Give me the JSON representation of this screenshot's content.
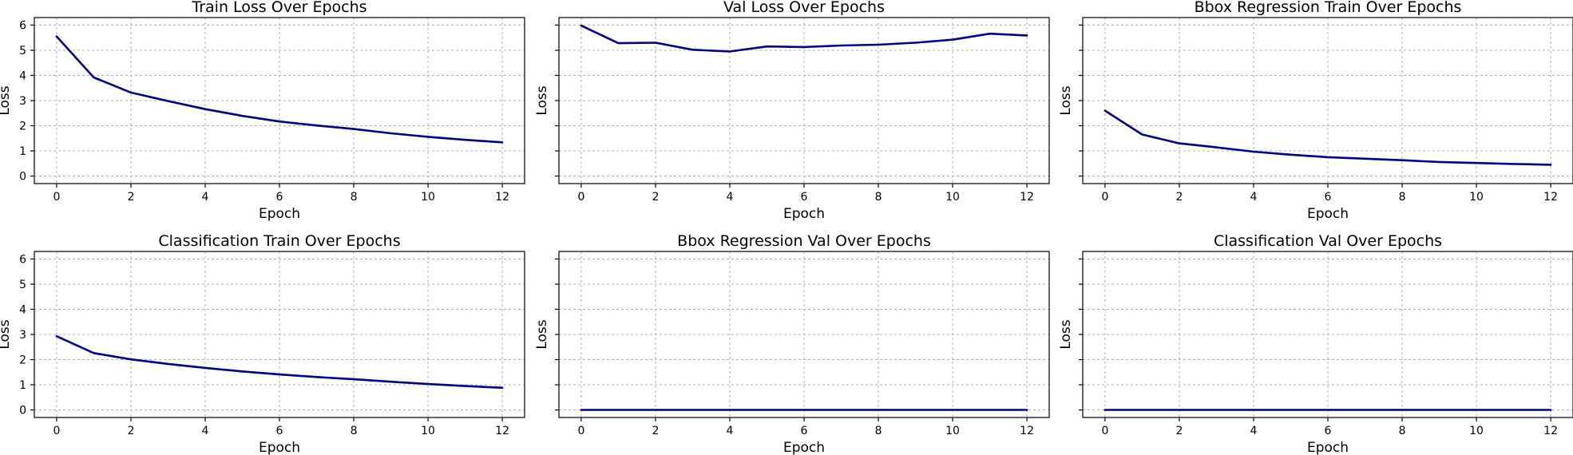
{
  "chart_data": [
    {
      "type": "line",
      "title": "Train Loss Over Epochs",
      "xlabel": "Epoch",
      "ylabel": "Loss",
      "x": [
        0,
        1,
        2,
        3,
        4,
        5,
        6,
        7,
        8,
        9,
        10,
        11,
        12
      ],
      "series": [
        {
          "values": [
            5.55,
            3.92,
            3.32,
            2.98,
            2.66,
            2.39,
            2.17,
            2.01,
            1.87,
            1.7,
            1.56,
            1.44,
            1.34
          ]
        }
      ],
      "xlim": [
        -0.6,
        12.6
      ],
      "ylim": [
        -0.3,
        6.3
      ],
      "xticks": [
        0,
        2,
        4,
        6,
        8,
        10,
        12
      ],
      "yticks": [
        0,
        1,
        2,
        3,
        4,
        5,
        6
      ],
      "show_ytick_labels": true,
      "grid": true,
      "color": "#00008b"
    },
    {
      "type": "line",
      "title": "Val Loss Over Epochs",
      "xlabel": "Epoch",
      "ylabel": "Loss",
      "x": [
        0,
        1,
        2,
        3,
        4,
        5,
        6,
        7,
        8,
        9,
        10,
        11,
        12
      ],
      "series": [
        {
          "values": [
            5.98,
            5.28,
            5.3,
            5.02,
            4.95,
            5.15,
            5.13,
            5.19,
            5.22,
            5.3,
            5.42,
            5.66,
            5.59
          ]
        }
      ],
      "xlim": [
        -0.6,
        12.6
      ],
      "ylim": [
        -0.3,
        6.3
      ],
      "xticks": [
        0,
        2,
        4,
        6,
        8,
        10,
        12
      ],
      "yticks": [
        0,
        1,
        2,
        3,
        4,
        5,
        6
      ],
      "show_ytick_labels": false,
      "grid": true,
      "color": "#00008b"
    },
    {
      "type": "line",
      "title": "Bbox Regression Train Over Epochs",
      "xlabel": "Epoch",
      "ylabel": "Loss",
      "x": [
        0,
        1,
        2,
        3,
        4,
        5,
        6,
        7,
        8,
        9,
        10,
        11,
        12
      ],
      "series": [
        {
          "values": [
            2.6,
            1.65,
            1.3,
            1.14,
            0.97,
            0.85,
            0.75,
            0.69,
            0.63,
            0.56,
            0.52,
            0.48,
            0.45
          ]
        }
      ],
      "xlim": [
        -0.6,
        12.6
      ],
      "ylim": [
        -0.3,
        6.3
      ],
      "xticks": [
        0,
        2,
        4,
        6,
        8,
        10,
        12
      ],
      "yticks": [
        0,
        1,
        2,
        3,
        4,
        5,
        6
      ],
      "show_ytick_labels": false,
      "grid": true,
      "color": "#00008b"
    },
    {
      "type": "line",
      "title": "Classification Train Over Epochs",
      "xlabel": "Epoch",
      "ylabel": "Loss",
      "x": [
        0,
        1,
        2,
        3,
        4,
        5,
        6,
        7,
        8,
        9,
        10,
        11,
        12
      ],
      "series": [
        {
          "values": [
            2.93,
            2.26,
            2.01,
            1.83,
            1.67,
            1.53,
            1.41,
            1.31,
            1.22,
            1.12,
            1.03,
            0.95,
            0.88
          ]
        }
      ],
      "xlim": [
        -0.6,
        12.6
      ],
      "ylim": [
        -0.3,
        6.3
      ],
      "xticks": [
        0,
        2,
        4,
        6,
        8,
        10,
        12
      ],
      "yticks": [
        0,
        1,
        2,
        3,
        4,
        5,
        6
      ],
      "show_ytick_labels": true,
      "grid": true,
      "color": "#00008b"
    },
    {
      "type": "line",
      "title": "Bbox Regression Val Over Epochs",
      "xlabel": "Epoch",
      "ylabel": "Loss",
      "x": [
        0,
        1,
        2,
        3,
        4,
        5,
        6,
        7,
        8,
        9,
        10,
        11,
        12
      ],
      "series": [
        {
          "values": [
            0,
            0,
            0,
            0,
            0,
            0,
            0,
            0,
            0,
            0,
            0,
            0,
            0
          ]
        }
      ],
      "xlim": [
        -0.6,
        12.6
      ],
      "ylim": [
        -0.3,
        6.3
      ],
      "xticks": [
        0,
        2,
        4,
        6,
        8,
        10,
        12
      ],
      "yticks": [
        0,
        1,
        2,
        3,
        4,
        5,
        6
      ],
      "show_ytick_labels": false,
      "grid": true,
      "color": "#00008b"
    },
    {
      "type": "line",
      "title": "Classification Val Over Epochs",
      "xlabel": "Epoch",
      "ylabel": "Loss",
      "x": [
        0,
        1,
        2,
        3,
        4,
        5,
        6,
        7,
        8,
        9,
        10,
        11,
        12
      ],
      "series": [
        {
          "values": [
            0,
            0,
            0,
            0,
            0,
            0,
            0,
            0,
            0,
            0,
            0,
            0,
            0
          ]
        }
      ],
      "xlim": [
        -0.6,
        12.6
      ],
      "ylim": [
        -0.3,
        6.3
      ],
      "xticks": [
        0,
        2,
        4,
        6,
        8,
        10,
        12
      ],
      "yticks": [
        0,
        1,
        2,
        3,
        4,
        5,
        6
      ],
      "show_ytick_labels": false,
      "grid": true,
      "color": "#00008b"
    }
  ]
}
